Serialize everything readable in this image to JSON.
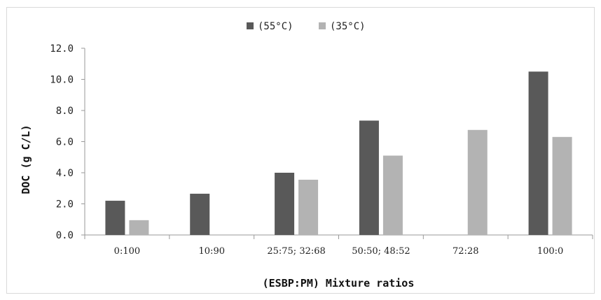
{
  "chart_data": {
    "type": "bar",
    "title": "",
    "xlabel": "(ESBP:PM) Mixture ratios",
    "ylabel": "DOC (g C/L)",
    "ylim": [
      0,
      12
    ],
    "yticks": [
      "0.0",
      "2.0",
      "4.0",
      "6.0",
      "8.0",
      "10.0",
      "12.0"
    ],
    "categories": [
      "0:100",
      "10:90",
      "25:75; 32:68",
      "50:50; 48:52",
      "72:28",
      "100:0"
    ],
    "series": [
      {
        "name": "(55°C)",
        "color": "#595959",
        "values": [
          2.2,
          2.65,
          4.0,
          7.35,
          null,
          10.5
        ]
      },
      {
        "name": "(35°C)",
        "color": "#b3b3b3",
        "values": [
          0.95,
          null,
          3.55,
          5.1,
          6.75,
          6.3
        ]
      }
    ],
    "legend_position": "top-center",
    "grid": false
  }
}
